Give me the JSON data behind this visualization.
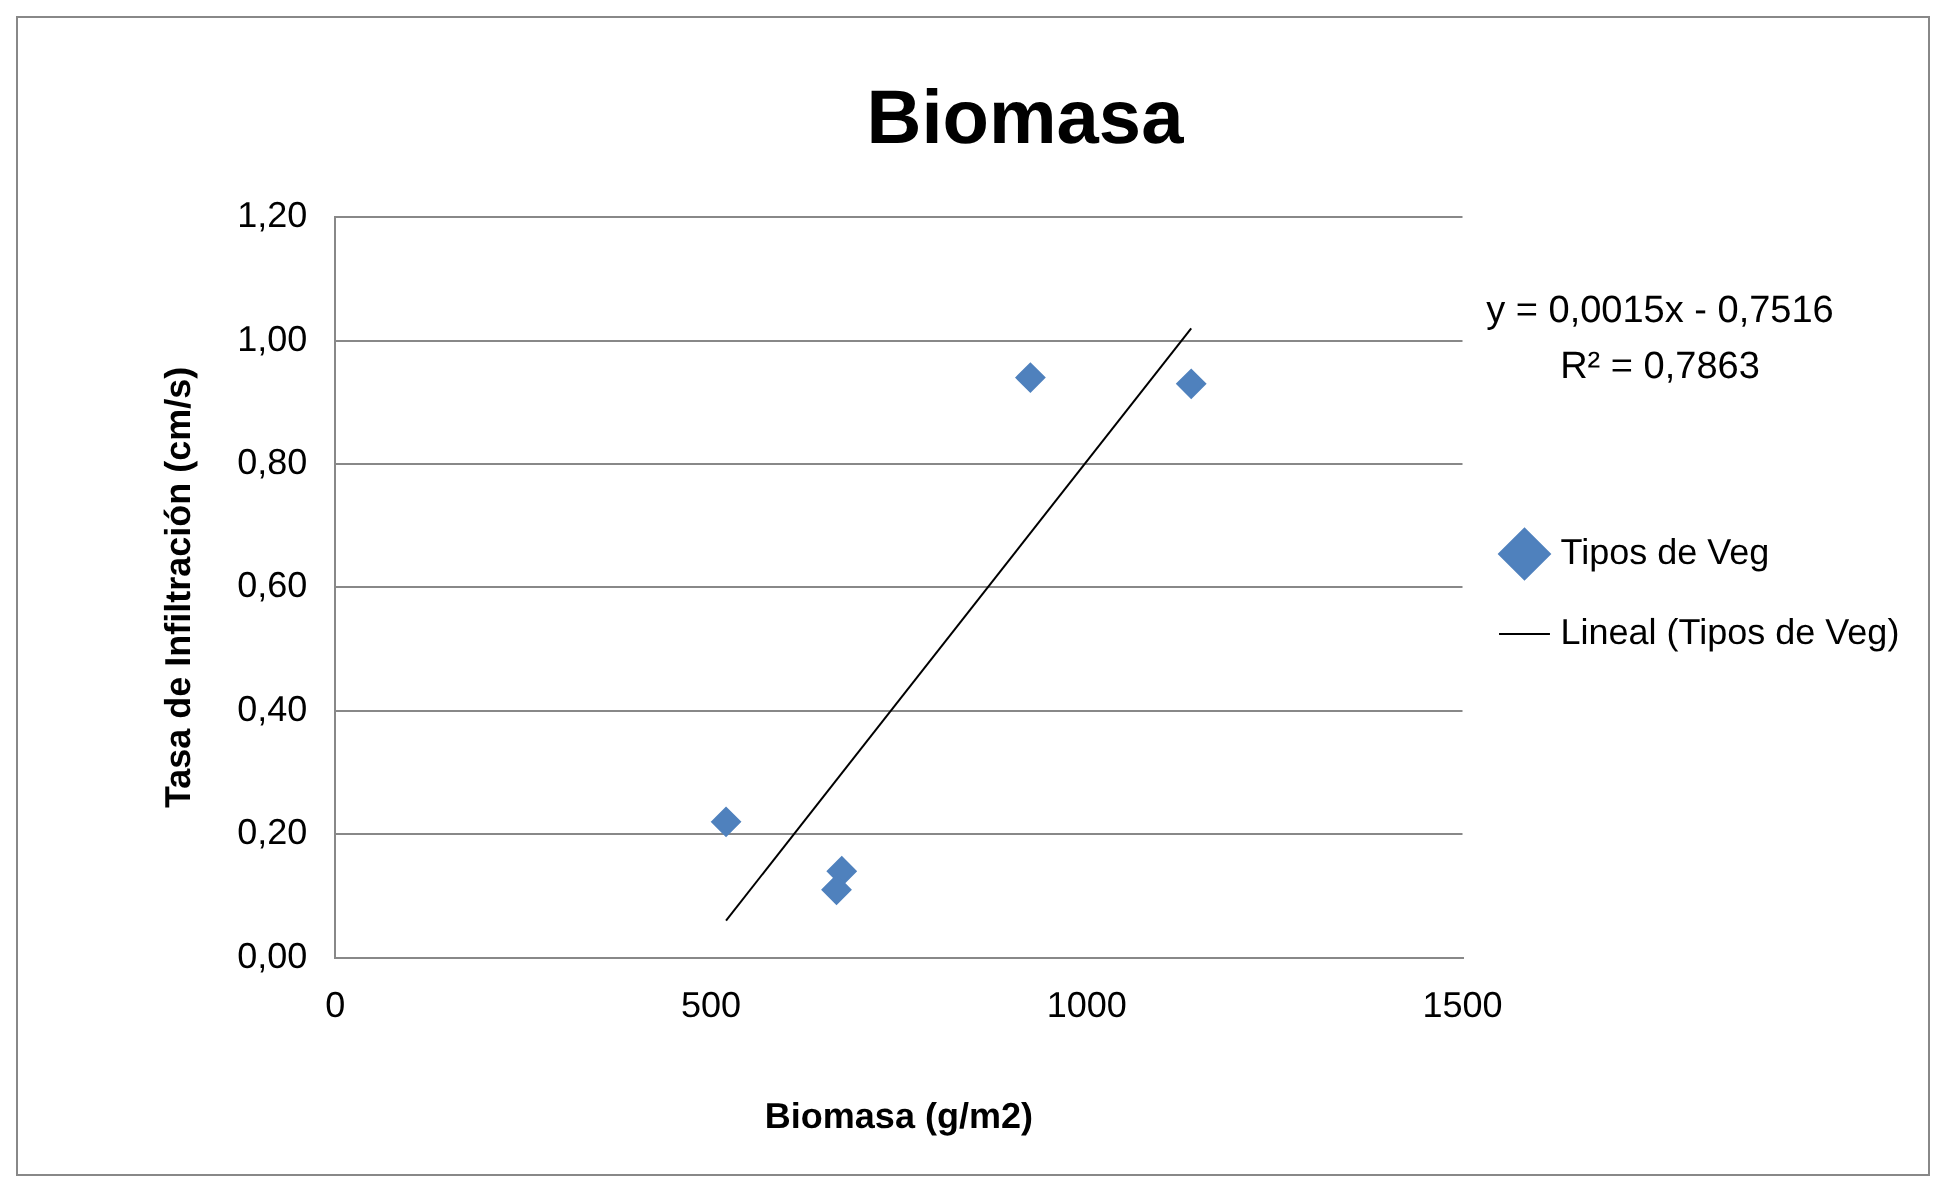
{
  "chart_data": {
    "type": "scatter",
    "title": "Biomasa",
    "xlabel": "Biomasa (g/m2)",
    "ylabel": "Tasa de Infiltración (cm/s)",
    "annotations": [
      "y = 0,0015x - 0,7516",
      "R² = 0,7863"
    ],
    "series": [
      {
        "name": "Tipos de Veg",
        "type": "scatter",
        "color": "#4f81bd",
        "marker": "diamond",
        "x": [
          520,
          674,
          667,
          925,
          1139
        ],
        "values": [
          0.22,
          0.14,
          0.11,
          0.94,
          0.93
        ]
      },
      {
        "name": "Lineal (Tipos de Veg)",
        "type": "line",
        "color": "#000000",
        "marker": "none",
        "x": [
          520,
          1139
        ],
        "values": [
          0.06,
          1.02
        ]
      }
    ],
    "xlim": [
      0,
      1500
    ],
    "xticks": [
      0,
      500,
      1000,
      1500
    ],
    "ylim": [
      0,
      1.2
    ],
    "yticks": [
      {
        "value": 0,
        "label": "0,00"
      },
      {
        "value": 0.2,
        "label": "0,20"
      },
      {
        "value": 0.4,
        "label": "0,40"
      },
      {
        "value": 0.6,
        "label": "0,60"
      },
      {
        "value": 0.8,
        "label": "0,80"
      },
      {
        "value": 1.0,
        "label": "1,00"
      },
      {
        "value": 1.2,
        "label": "1,20"
      }
    ],
    "grid": "y",
    "legend": "right"
  }
}
